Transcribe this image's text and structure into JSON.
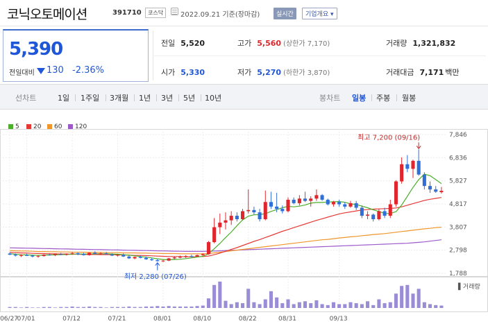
{
  "header": {
    "company_name": "코닉오토메이션",
    "code": "391710",
    "market_badge": "코스닥",
    "date_text": "2022.09.21 기준(장마감)",
    "realtime_button": "실시간",
    "overview_button": "기업개요 ▾"
  },
  "summary": {
    "price": "5,390",
    "change_label": "전일대비",
    "change_value": "130",
    "change_pct": "-2.36%",
    "prev_close_label": "전일",
    "prev_close": "5,520",
    "high_label": "고가",
    "high": "5,560",
    "upper_limit": "(상한가 7,170)",
    "volume_label": "거래량",
    "volume": "1,321,832",
    "open_label": "시가",
    "open": "5,330",
    "low_label": "저가",
    "low": "5,270",
    "lower_limit": "(하한가 3,870)",
    "trade_value_label": "거래대금",
    "trade_value": "7,171",
    "trade_value_unit": "백만"
  },
  "tabs": {
    "line_chart_label": "선차트",
    "periods": [
      "1일",
      "1주일",
      "3개월",
      "1년",
      "3년",
      "5년",
      "10년"
    ],
    "candle_chart_label": "봉차트",
    "candle_periods": [
      "일봉",
      "주봉",
      "월봉"
    ],
    "active_candle": "일봉"
  },
  "colors": {
    "up": "#e0262c",
    "down": "#2f6fd6",
    "ma5": "#4caf2a",
    "ma20": "#e53935",
    "ma60": "#f0952a",
    "ma120": "#9b59c9",
    "volume": "#9b8cd6"
  },
  "chart_data": {
    "type": "candlestick",
    "legend": [
      {
        "name": "5",
        "color": "#4caf2a"
      },
      {
        "name": "20",
        "color": "#e53935"
      },
      {
        "name": "60",
        "color": "#f0952a"
      },
      {
        "name": "120",
        "color": "#9b59c9"
      }
    ],
    "y_ticks": [
      "7,846",
      "6,836",
      "5,827",
      "4,817",
      "3,807",
      "2,798",
      "1,788"
    ],
    "ylim": [
      1788,
      7846
    ],
    "x_ticks": [
      "06/27",
      "07/01",
      "07/12",
      "07/21",
      "08/01",
      "08/10",
      "08/22",
      "08/31",
      "09/13"
    ],
    "high_annotation": "최고 7,200 (09/16)",
    "low_annotation": "최저 2,280 (07/26)",
    "volume_label": "거래량",
    "candles": [
      [
        2650,
        2700,
        2580,
        2600
      ],
      [
        2600,
        2650,
        2520,
        2560
      ],
      [
        2560,
        2620,
        2500,
        2580
      ],
      [
        2580,
        2640,
        2540,
        2560
      ],
      [
        2560,
        2600,
        2480,
        2520
      ],
      [
        2520,
        2580,
        2470,
        2540
      ],
      [
        2540,
        2620,
        2520,
        2600
      ],
      [
        2600,
        2660,
        2560,
        2580
      ],
      [
        2580,
        2640,
        2540,
        2620
      ],
      [
        2620,
        2680,
        2580,
        2600
      ],
      [
        2600,
        2660,
        2560,
        2640
      ],
      [
        2640,
        2720,
        2600,
        2660
      ],
      [
        2660,
        2700,
        2580,
        2620
      ],
      [
        2620,
        2680,
        2560,
        2580
      ],
      [
        2580,
        2700,
        2560,
        2680
      ],
      [
        2680,
        2750,
        2620,
        2640
      ],
      [
        2640,
        2700,
        2590,
        2660
      ],
      [
        2660,
        2720,
        2600,
        2620
      ],
      [
        2620,
        2660,
        2540,
        2560
      ],
      [
        2560,
        2640,
        2520,
        2600
      ],
      [
        2600,
        2650,
        2500,
        2520
      ],
      [
        2520,
        2580,
        2420,
        2440
      ],
      [
        2440,
        2520,
        2400,
        2500
      ],
      [
        2500,
        2560,
        2440,
        2460
      ],
      [
        2460,
        2520,
        2380,
        2400
      ],
      [
        2400,
        2460,
        2330,
        2360
      ],
      [
        2360,
        2420,
        2300,
        2320
      ],
      [
        2320,
        2380,
        2280,
        2340
      ],
      [
        2340,
        2460,
        2320,
        2440
      ],
      [
        2440,
        2520,
        2400,
        2480
      ],
      [
        2480,
        2560,
        2440,
        2500
      ],
      [
        2500,
        2580,
        2460,
        2540
      ],
      [
        2540,
        2600,
        2480,
        2520
      ],
      [
        2520,
        2600,
        2500,
        2580
      ],
      [
        2580,
        2660,
        2540,
        2620
      ],
      [
        2620,
        3200,
        2600,
        3150
      ],
      [
        3150,
        4200,
        3100,
        3800
      ],
      [
        3800,
        4400,
        3500,
        4000
      ],
      [
        4000,
        4450,
        3700,
        4100
      ],
      [
        4100,
        4500,
        3900,
        4300
      ],
      [
        4300,
        4450,
        4050,
        4150
      ],
      [
        4150,
        4600,
        4100,
        4500
      ],
      [
        4500,
        5450,
        4400,
        4550
      ],
      [
        4550,
        4700,
        4350,
        4450
      ],
      [
        4450,
        4600,
        4050,
        4150
      ],
      [
        4150,
        5400,
        4100,
        4900
      ],
      [
        4900,
        5350,
        4600,
        4700
      ],
      [
        4700,
        5300,
        4450,
        4600
      ],
      [
        4600,
        4750,
        4400,
        4500
      ],
      [
        4500,
        5100,
        4450,
        5000
      ],
      [
        5000,
        5100,
        4800,
        4850
      ],
      [
        4850,
        5200,
        4750,
        5050
      ],
      [
        5050,
        5350,
        4900,
        4950
      ],
      [
        4950,
        5150,
        4700,
        5050
      ],
      [
        5050,
        5450,
        4950,
        5200
      ],
      [
        5200,
        5250,
        4950,
        5000
      ],
      [
        5000,
        5050,
        4750,
        4800
      ],
      [
        4800,
        4950,
        4700,
        4900
      ],
      [
        4900,
        5000,
        4700,
        4800
      ],
      [
        4800,
        4900,
        4600,
        4700
      ],
      [
        4700,
        4950,
        4650,
        4850
      ],
      [
        4850,
        4950,
        4550,
        4650
      ],
      [
        4650,
        4750,
        4200,
        4300
      ],
      [
        4300,
        4500,
        4150,
        4350
      ],
      [
        4350,
        4400,
        4050,
        4150
      ],
      [
        4150,
        4600,
        4100,
        4500
      ],
      [
        4500,
        4650,
        4200,
        4300
      ],
      [
        4300,
        5000,
        4200,
        4800
      ],
      [
        4800,
        5850,
        4700,
        5800
      ],
      [
        5800,
        6850,
        5700,
        6550
      ],
      [
        6550,
        6950,
        6200,
        6350
      ],
      [
        6350,
        6750,
        5950,
        6700
      ],
      [
        6700,
        7200,
        6050,
        6100
      ],
      [
        6100,
        6200,
        5450,
        5600
      ],
      [
        5600,
        5800,
        5300,
        5450
      ],
      [
        5450,
        5600,
        5300,
        5350
      ],
      [
        5330,
        5560,
        5270,
        5390
      ]
    ],
    "ma5": [
      2640,
      2620,
      2600,
      2590,
      2580,
      2570,
      2580,
      2590,
      2590,
      2600,
      2610,
      2620,
      2630,
      2630,
      2630,
      2640,
      2640,
      2640,
      2630,
      2620,
      2600,
      2580,
      2550,
      2520,
      2490,
      2460,
      2420,
      2390,
      2380,
      2390,
      2400,
      2430,
      2460,
      2500,
      2530,
      2640,
      2860,
      3090,
      3350,
      3590,
      3870,
      4120,
      4280,
      4340,
      4350,
      4390,
      4490,
      4570,
      4650,
      4710,
      4690,
      4720,
      4770,
      4850,
      4880,
      4880,
      4900,
      4910,
      4920,
      4890,
      4820,
      4790,
      4720,
      4650,
      4560,
      4490,
      4400,
      4400,
      4480,
      4770,
      5150,
      5540,
      5880,
      6120,
      6050,
      5880,
      5700
    ],
    "ma20": [
      2700,
      2690,
      2680,
      2670,
      2660,
      2650,
      2650,
      2640,
      2640,
      2630,
      2630,
      2620,
      2620,
      2610,
      2610,
      2610,
      2600,
      2600,
      2600,
      2590,
      2590,
      2580,
      2570,
      2570,
      2560,
      2550,
      2540,
      2530,
      2520,
      2520,
      2520,
      2510,
      2510,
      2510,
      2520,
      2540,
      2600,
      2670,
      2750,
      2830,
      2910,
      3000,
      3090,
      3180,
      3260,
      3350,
      3440,
      3530,
      3620,
      3700,
      3780,
      3860,
      3940,
      4020,
      4100,
      4170,
      4240,
      4310,
      4380,
      4430,
      4470,
      4510,
      4550,
      4570,
      4590,
      4600,
      4610,
      4620,
      4640,
      4690,
      4760,
      4830,
      4900,
      4970,
      5020,
      5060,
      5100
    ],
    "ma60": [
      2780,
      2770,
      2760,
      2760,
      2750,
      2740,
      2740,
      2730,
      2730,
      2720,
      2720,
      2710,
      2710,
      2710,
      2700,
      2700,
      2700,
      2690,
      2690,
      2690,
      2680,
      2680,
      2680,
      2670,
      2670,
      2660,
      2660,
      2650,
      2650,
      2650,
      2640,
      2640,
      2640,
      2640,
      2640,
      2650,
      2680,
      2710,
      2740,
      2770,
      2800,
      2830,
      2860,
      2890,
      2920,
      2950,
      2980,
      3010,
      3040,
      3070,
      3100,
      3130,
      3160,
      3190,
      3220,
      3250,
      3270,
      3300,
      3330,
      3350,
      3380,
      3400,
      3430,
      3450,
      3480,
      3500,
      3520,
      3550,
      3580,
      3610,
      3640,
      3670,
      3700,
      3730,
      3750,
      3780,
      3800
    ],
    "ma120": [
      2900,
      2895,
      2890,
      2885,
      2880,
      2875,
      2870,
      2865,
      2860,
      2855,
      2850,
      2845,
      2840,
      2835,
      2830,
      2825,
      2820,
      2815,
      2810,
      2805,
      2800,
      2795,
      2790,
      2785,
      2780,
      2775,
      2770,
      2765,
      2760,
      2755,
      2750,
      2745,
      2745,
      2745,
      2745,
      2750,
      2760,
      2770,
      2780,
      2790,
      2800,
      2810,
      2820,
      2830,
      2840,
      2850,
      2860,
      2870,
      2880,
      2890,
      2900,
      2910,
      2920,
      2930,
      2940,
      2950,
      2960,
      2970,
      2980,
      2990,
      3000,
      3010,
      3020,
      3030,
      3040,
      3050,
      3060,
      3070,
      3080,
      3090,
      3100,
      3120,
      3140,
      3160,
      3190,
      3220,
      3250
    ],
    "volume": [
      2,
      2,
      1,
      2,
      1,
      1,
      2,
      2,
      1,
      2,
      2,
      3,
      2,
      2,
      3,
      2,
      2,
      1,
      2,
      2,
      2,
      3,
      2,
      2,
      3,
      3,
      4,
      3,
      4,
      3,
      3,
      3,
      3,
      4,
      5,
      20,
      48,
      55,
      15,
      8,
      12,
      10,
      40,
      12,
      8,
      18,
      35,
      22,
      10,
      18,
      8,
      12,
      14,
      10,
      16,
      8,
      6,
      12,
      8,
      8,
      12,
      10,
      8,
      14,
      6,
      18,
      10,
      12,
      30,
      46,
      48,
      30,
      40,
      12,
      8,
      6,
      5
    ]
  }
}
